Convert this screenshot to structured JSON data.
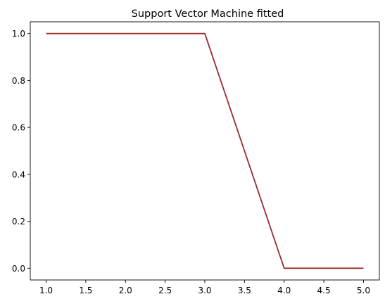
{
  "chart_data": {
    "type": "line",
    "title": "Support Vector Machine fitted",
    "xlabel": "",
    "ylabel": "",
    "x": [
      1,
      2,
      3,
      4,
      5
    ],
    "series": [
      {
        "values": [
          1.0,
          1.0,
          1.0,
          0.0,
          0.0
        ],
        "color": "#9b2d2a"
      }
    ],
    "xlim": [
      0.8,
      5.2
    ],
    "ylim": [
      -0.05,
      1.05
    ],
    "xticks": [
      1.0,
      1.5,
      2.0,
      2.5,
      3.0,
      3.5,
      4.0,
      4.5,
      5.0
    ],
    "xtick_labels": [
      "1.0",
      "1.5",
      "2.0",
      "2.5",
      "3.0",
      "3.5",
      "4.0",
      "4.5",
      "5.0"
    ],
    "yticks": [
      0.0,
      0.2,
      0.4,
      0.6,
      0.8,
      1.0
    ],
    "ytick_labels": [
      "0.0",
      "0.2",
      "0.4",
      "0.6",
      "0.8",
      "1.0"
    ],
    "grid": false,
    "legend": "none"
  }
}
